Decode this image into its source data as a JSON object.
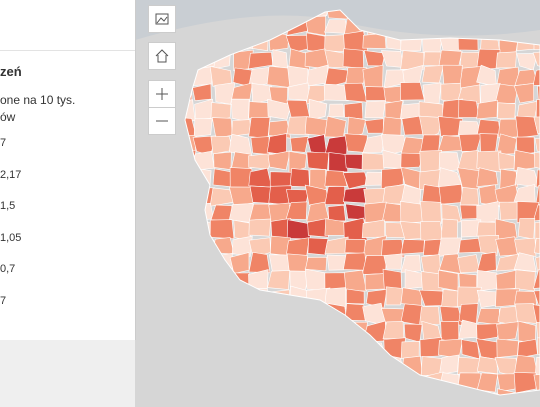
{
  "panel": {
    "title": "zeń",
    "subtitle_lines": [
      "one na 10 tys.",
      "ów"
    ],
    "legend": [
      "7",
      "2,17",
      "1,5",
      "1,05",
      "0,7",
      "7"
    ]
  }
}
